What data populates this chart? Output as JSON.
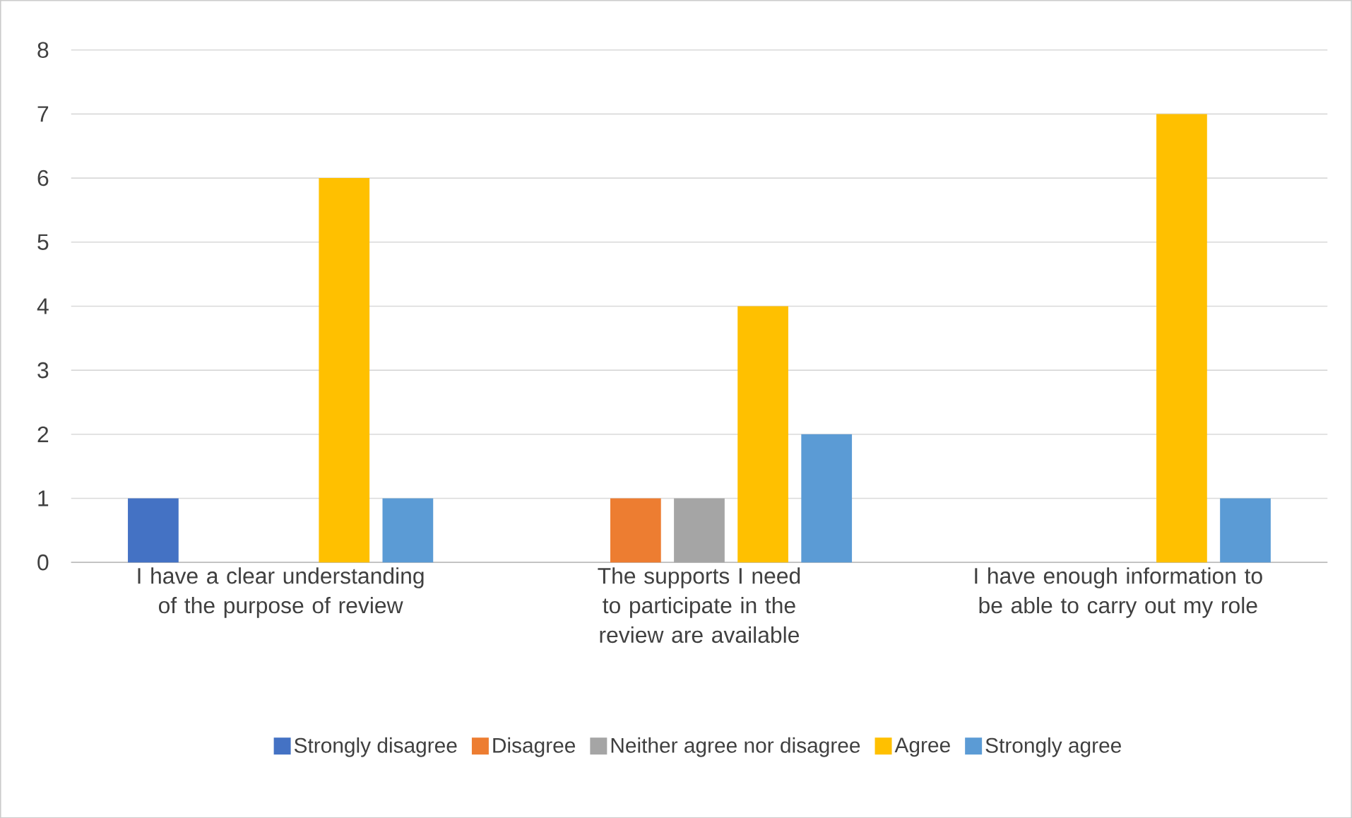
{
  "chart_data": {
    "type": "bar",
    "categories": [
      "I have a clear understanding of the purpose of review",
      "The supports I need to participate in the review are available",
      "I have enough information to be able to carry out my role"
    ],
    "series": [
      {
        "name": "Strongly disagree",
        "color": "#4472c4",
        "values": [
          1,
          0,
          0
        ]
      },
      {
        "name": "Disagree",
        "color": "#ed7d31",
        "values": [
          0,
          1,
          0
        ]
      },
      {
        "name": "Neither agree nor disagree",
        "color": "#a5a5a5",
        "values": [
          0,
          1,
          0
        ]
      },
      {
        "name": "Agree",
        "color": "#ffc000",
        "values": [
          6,
          4,
          7
        ]
      },
      {
        "name": "Strongly agree",
        "color": "#5b9bd5",
        "values": [
          1,
          2,
          1
        ]
      }
    ],
    "ylim": [
      0,
      8
    ],
    "yticks": [
      0,
      1,
      2,
      3,
      4,
      5,
      6,
      7,
      8
    ],
    "grid": "y",
    "legend": "bottom"
  }
}
